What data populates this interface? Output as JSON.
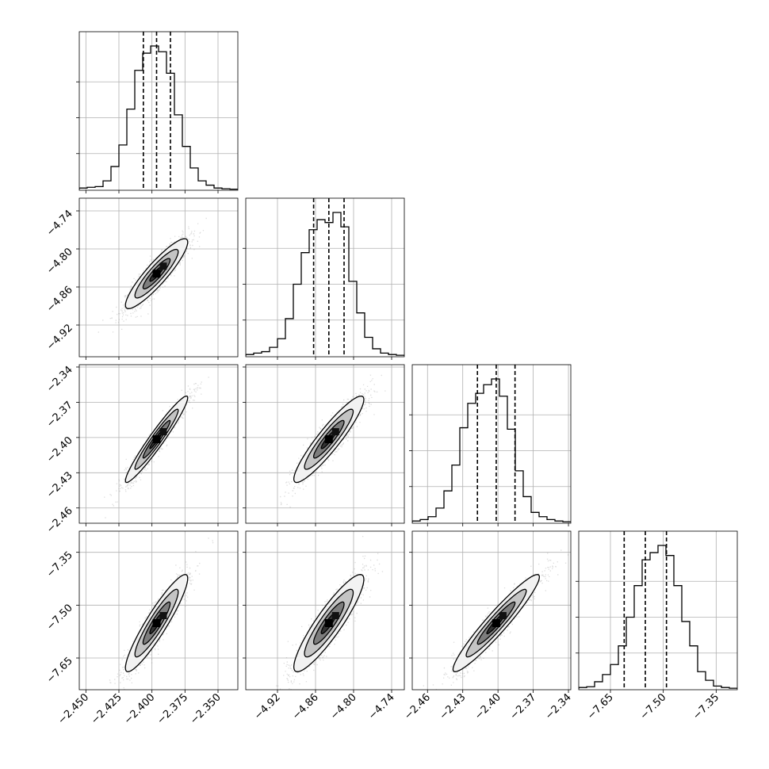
{
  "chart_data": {
    "type": "corner",
    "title": "",
    "grid": true,
    "parameters": [
      {
        "index": 0,
        "median": -2.3965,
        "q16": -2.4065,
        "q84": -2.386,
        "range": [
          -2.455,
          -2.335
        ],
        "ticks": [
          -2.45,
          -2.425,
          -2.4,
          -2.375,
          -2.35
        ],
        "tick_labels": [
          "−2.450",
          "−2.425",
          "−2.400",
          "−2.375",
          "−2.350"
        ],
        "hist": [
          0.01,
          0.015,
          0.02,
          0.06,
          0.16,
          0.31,
          0.56,
          0.83,
          0.95,
          1.0,
          0.96,
          0.81,
          0.52,
          0.3,
          0.15,
          0.06,
          0.03,
          0.01,
          0.005,
          0.002
        ]
      },
      {
        "index": 1,
        "median": -4.839,
        "q16": -4.863,
        "q84": -4.815,
        "range": [
          -4.97,
          -4.72
        ],
        "ticks": [
          -4.92,
          -4.86,
          -4.8,
          -4.74
        ],
        "tick_labels": [
          "−4.92",
          "−4.86",
          "−4.80",
          "−4.74"
        ],
        "hist": [
          0.01,
          0.02,
          0.03,
          0.06,
          0.12,
          0.26,
          0.5,
          0.72,
          0.88,
          0.95,
          0.93,
          1.0,
          0.9,
          0.52,
          0.3,
          0.13,
          0.05,
          0.02,
          0.01,
          0.005
        ]
      },
      {
        "index": 2,
        "median": -2.4015,
        "q16": -2.4175,
        "q84": -2.3855,
        "range": [
          -2.473,
          -2.338
        ],
        "ticks": [
          -2.46,
          -2.43,
          -2.4,
          -2.37,
          -2.34
        ],
        "tick_labels": [
          "−2.46",
          "−2.43",
          "−2.40",
          "−2.37",
          "−2.34"
        ],
        "hist": [
          0.01,
          0.02,
          0.04,
          0.1,
          0.22,
          0.4,
          0.66,
          0.83,
          0.9,
          0.96,
          1.0,
          0.88,
          0.65,
          0.36,
          0.18,
          0.07,
          0.04,
          0.02,
          0.01,
          0.005
        ]
      },
      {
        "index": 3,
        "median": -7.551,
        "q16": -7.611,
        "q84": -7.491,
        "range": [
          -7.74,
          -7.29
        ],
        "ticks": [
          -7.65,
          -7.5,
          -7.35
        ],
        "tick_labels": [
          "−7.65",
          "−7.50",
          "−7.35"
        ],
        "hist": [
          0.01,
          0.015,
          0.05,
          0.1,
          0.17,
          0.3,
          0.5,
          0.72,
          0.9,
          0.95,
          1.0,
          0.93,
          0.72,
          0.47,
          0.3,
          0.12,
          0.06,
          0.02,
          0.01,
          0.005
        ]
      }
    ],
    "correlations": {
      "1-0": 0.9,
      "2-0": 0.96,
      "2-1": 0.92,
      "3-0": 0.92,
      "3-1": 0.9,
      "3-2": 0.95
    }
  }
}
